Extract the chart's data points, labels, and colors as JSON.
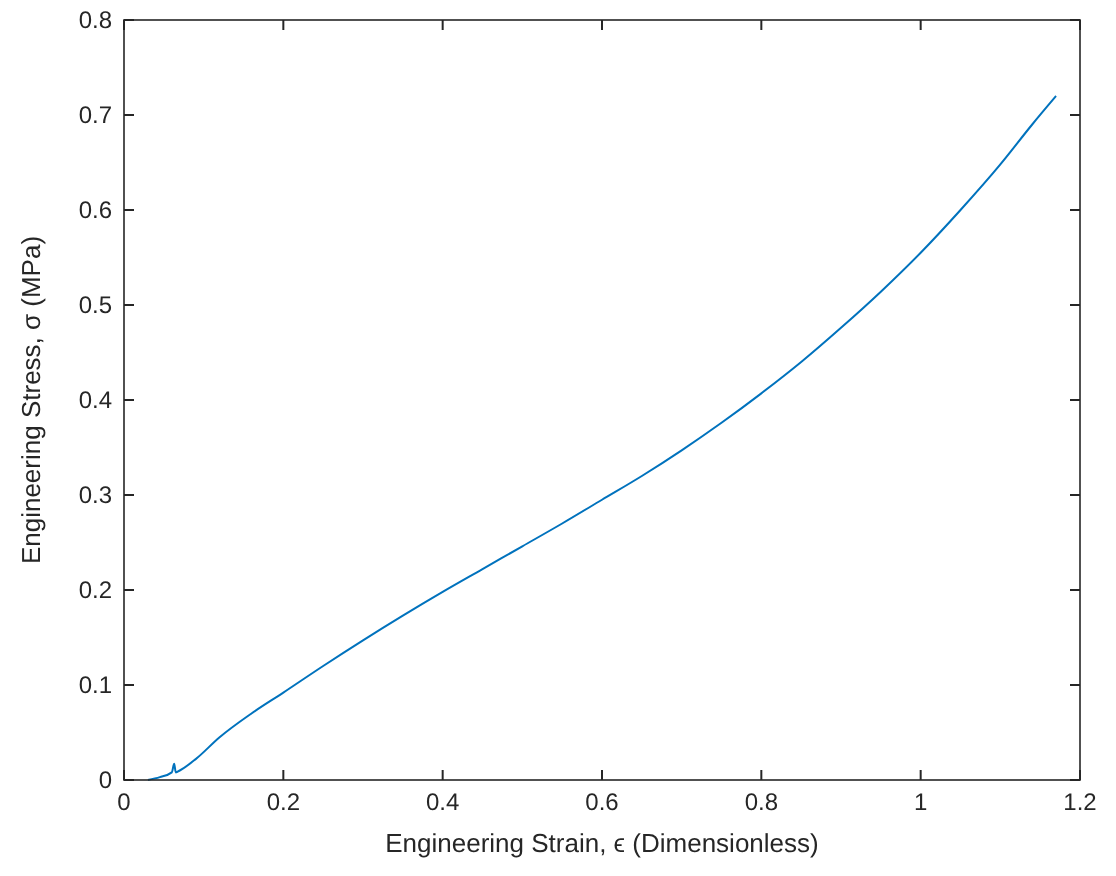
{
  "chart_data": {
    "type": "line",
    "xlabel": "Engineering Strain, ϵ (Dimensionless)",
    "ylabel": "Engineering Stress, σ (MPa)",
    "xlim": [
      0,
      1.2
    ],
    "ylim": [
      0,
      0.8
    ],
    "xticks": [
      0,
      0.2,
      0.4,
      0.6,
      0.8,
      1,
      1.2
    ],
    "yticks": [
      0,
      0.1,
      0.2,
      0.3,
      0.4,
      0.5,
      0.6,
      0.7,
      0.8
    ],
    "grid": false,
    "marker": "none",
    "line_style": "solid",
    "series": [
      {
        "color": "#0072bd",
        "x": [
          0.03,
          0.045,
          0.06,
          0.063,
          0.065,
          0.07,
          0.09,
          0.12,
          0.16,
          0.2,
          0.25,
          0.3,
          0.35,
          0.4,
          0.45,
          0.5,
          0.55,
          0.6,
          0.65,
          0.7,
          0.75,
          0.8,
          0.85,
          0.9,
          0.95,
          1.0,
          1.05,
          1.1,
          1.14,
          1.17
        ],
        "values": [
          0,
          0.003,
          0.008,
          0.017,
          0.008,
          0.01,
          0.022,
          0.045,
          0.07,
          0.092,
          0.12,
          0.147,
          0.173,
          0.198,
          0.222,
          0.246,
          0.27,
          0.295,
          0.32,
          0.347,
          0.376,
          0.407,
          0.44,
          0.476,
          0.514,
          0.555,
          0.6,
          0.648,
          0.69,
          0.72
        ]
      }
    ]
  }
}
